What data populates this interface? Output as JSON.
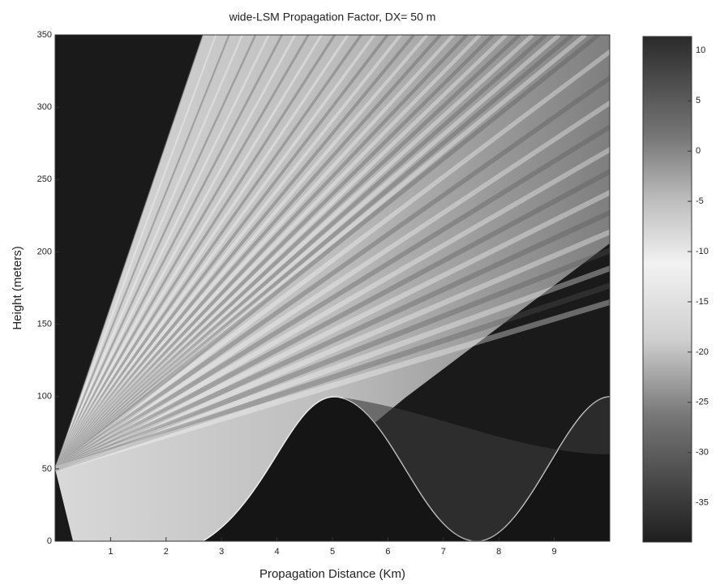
{
  "chart_data": {
    "type": "heatmap",
    "title": "wide-LSM Propagation Factor, DX= 50 m",
    "xlabel": "Propagation Distance (Km)",
    "ylabel": "Height (meters)",
    "xlim": [
      0,
      10
    ],
    "xticks": [
      1,
      2,
      3,
      4,
      5,
      6,
      7,
      8,
      9
    ],
    "ylim": [
      0,
      350
    ],
    "yticks": [
      0,
      50,
      100,
      150,
      200,
      250,
      300,
      350
    ],
    "colorbar": {
      "lim": [
        -38.9,
        11.4
      ],
      "ticks": [
        10,
        5,
        0,
        -5,
        -10,
        -15,
        -20,
        -25,
        -30,
        -35
      ]
    }
  }
}
